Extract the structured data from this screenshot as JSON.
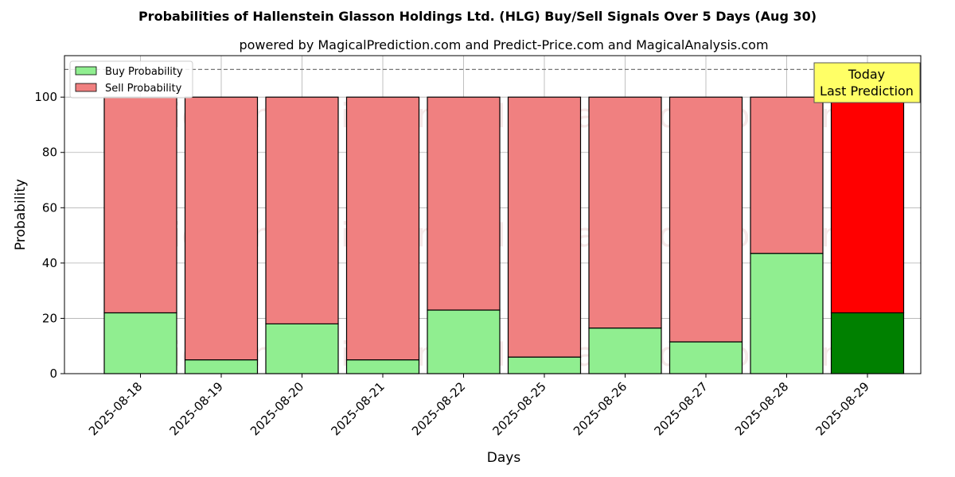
{
  "chart_data": {
    "type": "bar",
    "stacked": true,
    "title": "Probabilities of Hallenstein Glasson Holdings Ltd. (HLG) Buy/Sell Signals Over 5 Days (Aug 30)",
    "subtitle": "powered by MagicalPrediction.com and Predict-Price.com and MagicalAnalysis.com",
    "xlabel": "Days",
    "ylabel": "Probability",
    "ylim": [
      0,
      115
    ],
    "yticks": [
      0,
      20,
      40,
      60,
      80,
      100
    ],
    "grid": true,
    "legend_position": "top-left",
    "categories": [
      "2025-08-18",
      "2025-08-19",
      "2025-08-20",
      "2025-08-21",
      "2025-08-22",
      "2025-08-25",
      "2025-08-26",
      "2025-08-27",
      "2025-08-28",
      "2025-08-29"
    ],
    "series": [
      {
        "name": "Buy Probability",
        "color": "#90ee90",
        "highlight_color": "#008000",
        "values": [
          22,
          5,
          18,
          5,
          23,
          6,
          16.5,
          11.5,
          43.5,
          22
        ]
      },
      {
        "name": "Sell Probability",
        "color": "#f08080",
        "highlight_color": "#ff0000",
        "values": [
          78,
          95,
          82,
          95,
          77,
          94,
          83.5,
          88.5,
          56.5,
          78
        ]
      }
    ],
    "reference_line": {
      "y": 110,
      "style": "dashed"
    },
    "annotation": {
      "line1": "Today",
      "line2": "Last Prediction",
      "background": "#ffff66",
      "target_category": "2025-08-29"
    },
    "watermarks": [
      "MagicalAnalysis.com",
      "MagicalPrediction.com"
    ]
  }
}
